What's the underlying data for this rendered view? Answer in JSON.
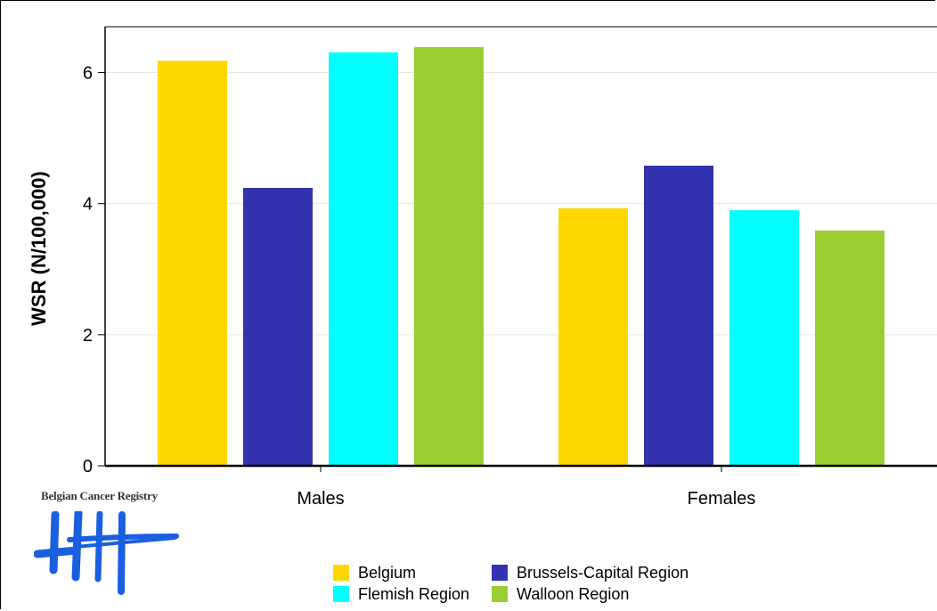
{
  "chart_data": {
    "type": "bar",
    "ylabel": "WSR (N/100,000)",
    "xlabel": "",
    "ylim": [
      0,
      6.7
    ],
    "yticks": [
      0,
      2,
      4,
      6
    ],
    "grid": true,
    "legend_position": "bottom",
    "categories": [
      "Males",
      "Females"
    ],
    "series": [
      {
        "name": "Belgium",
        "color": "#FFD700",
        "values": [
          6.18,
          3.93
        ]
      },
      {
        "name": "Brussels-Capital Region",
        "color": "#3333B0",
        "values": [
          4.24,
          4.58
        ]
      },
      {
        "name": "Flemish Region",
        "color": "#00FFFF",
        "values": [
          6.31,
          3.9
        ]
      },
      {
        "name": "Walloon Region",
        "color": "#9ACD32",
        "values": [
          6.39,
          3.59
        ]
      }
    ]
  },
  "logo": {
    "text": "Belgian Cancer Registry",
    "color": "#1A5FE0"
  }
}
